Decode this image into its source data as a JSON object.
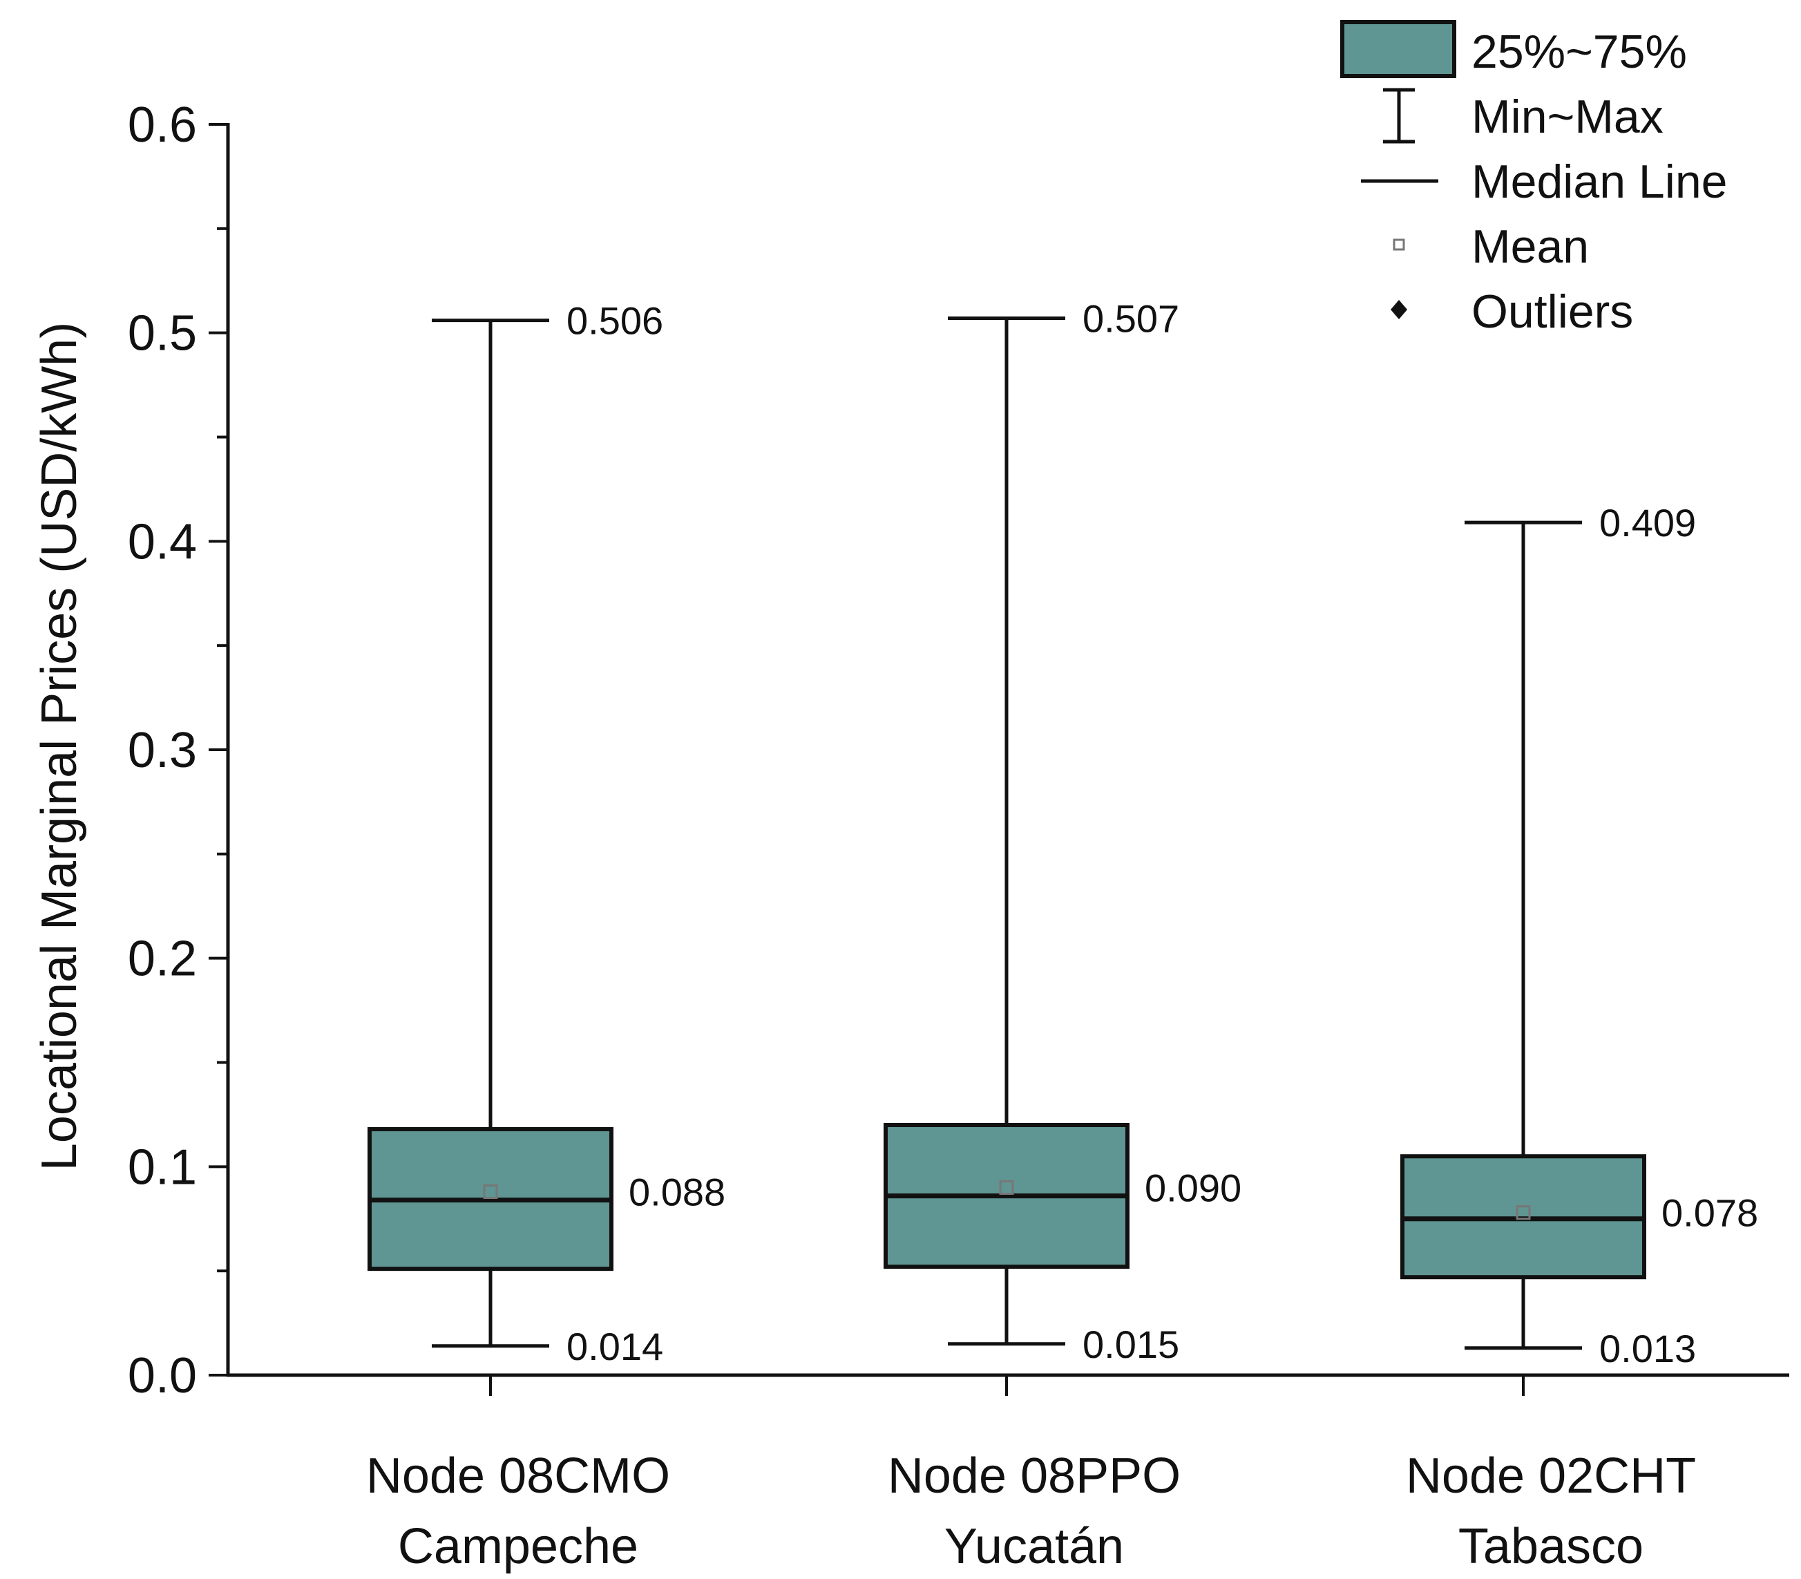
{
  "chart_data": {
    "type": "box",
    "ylabel": "Locational Marginal Prices (USD/kWh)",
    "xlabel": "",
    "ylim": [
      0.0,
      0.6
    ],
    "yticks": [
      "0.0",
      "0.1",
      "0.2",
      "0.3",
      "0.4",
      "0.5",
      "0.6"
    ],
    "y_tick_values": [
      0.0,
      0.1,
      0.2,
      0.3,
      0.4,
      0.5,
      0.6
    ],
    "minor_tick_values": [
      0.05,
      0.15,
      0.25,
      0.35,
      0.45,
      0.55
    ],
    "box_color": "#5f9592",
    "legend": {
      "position": "top-right",
      "items": [
        "25%~75%",
        "Min~Max",
        "Median Line",
        "Mean",
        "Outliers"
      ]
    },
    "boxes": [
      {
        "name": "Node 08CMO Campeche",
        "label_line1": "Node 08CMO",
        "label_line2": "Campeche",
        "min": 0.014,
        "q1": 0.051,
        "median": 0.084,
        "q3": 0.118,
        "max": 0.506,
        "mean": 0.088,
        "min_label": "0.014",
        "max_label": "0.506",
        "mean_label": "0.088"
      },
      {
        "name": "Node 08PPO Yucatán",
        "label_line1": "Node 08PPO",
        "label_line2": "Yucatán",
        "min": 0.015,
        "q1": 0.052,
        "median": 0.086,
        "q3": 0.12,
        "max": 0.507,
        "mean": 0.09,
        "min_label": "0.015",
        "max_label": "0.507",
        "mean_label": "0.090"
      },
      {
        "name": "Node 02CHT Tabasco",
        "label_line1": "Node 02CHT",
        "label_line2": "Tabasco",
        "min": 0.013,
        "q1": 0.047,
        "median": 0.075,
        "q3": 0.105,
        "max": 0.409,
        "mean": 0.078,
        "min_label": "0.013",
        "max_label": "0.409",
        "mean_label": "0.078"
      }
    ]
  }
}
